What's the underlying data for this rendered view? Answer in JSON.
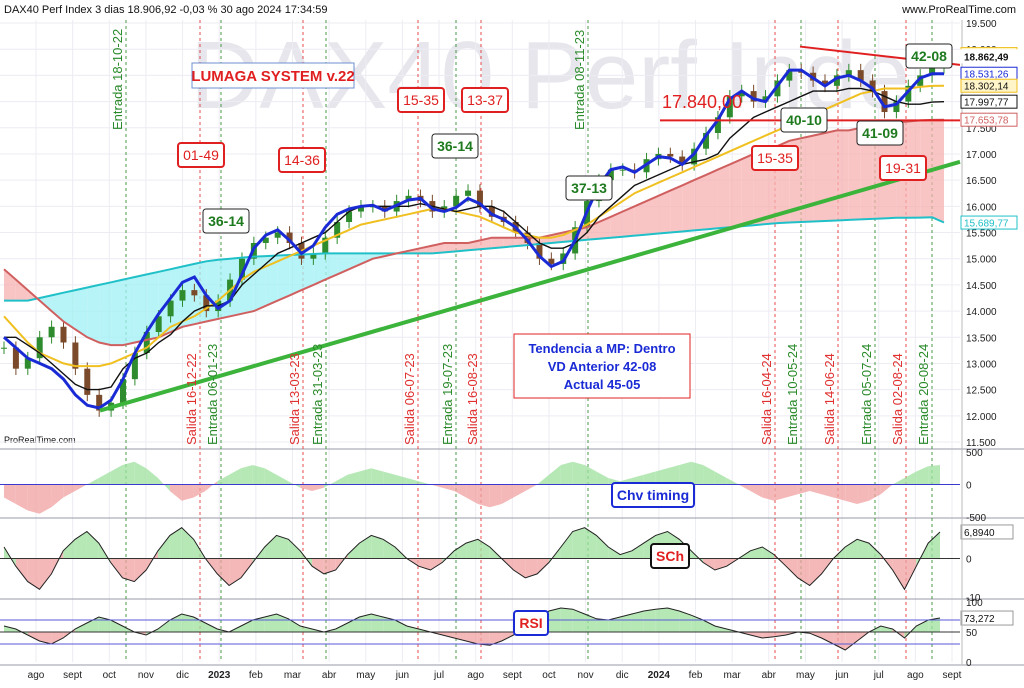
{
  "header": {
    "title": "DAX40 Perf Index 3 dias 18.906,92 -0,03 % 30 ago 2024 17:34:59",
    "brand": "www.ProRealTime.com",
    "watermark": "DAX40 Perf Inde",
    "footer_brand": "ProRealTime.com"
  },
  "colors": {
    "price": "#2e8b2e",
    "ma_blue": "#1a2bd6",
    "ma_black": "#111111",
    "ma_yellow": "#f0c020",
    "ma_brown": "#d06060",
    "ma_cyan": "#20c0c8",
    "trend_green": "#3cb43c",
    "trend_red": "#e02020",
    "signal_red": "#e03030",
    "signal_green": "#2a8a2a"
  },
  "chart_data": [
    {
      "type": "line",
      "name": "price-panel",
      "x": [
        "ago",
        "sept",
        "oct",
        "nov",
        "dic",
        "2023",
        "feb",
        "mar",
        "abr",
        "may",
        "jun",
        "jul",
        "ago",
        "sept",
        "oct",
        "nov",
        "dic",
        "2024",
        "feb",
        "mar",
        "abr",
        "may",
        "jun",
        "jul",
        "ago",
        "sept"
      ],
      "ylim": [
        11500,
        19500
      ],
      "y_ticks": [
        "19.500",
        "19.000",
        "18.500",
        "18.000",
        "17.500",
        "17.000",
        "16.500",
        "16.000",
        "15.500",
        "15.000",
        "14.500",
        "14.000",
        "13.500",
        "13.000",
        "12.500",
        "12.000",
        "11.500"
      ],
      "price_labels": [
        {
          "text": "18.906,92",
          "value": 18906.92,
          "bg": "#f0c020"
        },
        {
          "text": "18.862,49",
          "value": 18862.49,
          "bg": "#ffffff"
        },
        {
          "text": "18.531,26",
          "value": 18531.26,
          "bg": "#1a2bd6"
        },
        {
          "text": "18.302,14",
          "value": 18302.14,
          "bg": "#f0c020"
        },
        {
          "text": "17.997,77",
          "value": 17997.77,
          "bg": "#111111"
        },
        {
          "text": "17.653,78",
          "value": 17653.78,
          "bg": "#d06060"
        },
        {
          "text": "15.689,77",
          "value": 15689.77,
          "bg": "#20c0c8"
        }
      ],
      "price_series": [
        13300,
        12900,
        13100,
        13500,
        13700,
        13400,
        12900,
        12400,
        12100,
        12250,
        12700,
        13200,
        13600,
        13900,
        14200,
        14400,
        14300,
        14000,
        14200,
        14600,
        15000,
        15300,
        15400,
        15500,
        15300,
        15000,
        15100,
        15400,
        15700,
        15900,
        16000,
        16000,
        15900,
        16100,
        16200,
        16100,
        15900,
        16000,
        16200,
        16300,
        16000,
        15800,
        15700,
        15500,
        15300,
        15000,
        14900,
        15100,
        15600,
        16100,
        16500,
        16700,
        16700,
        16650,
        16900,
        17000,
        16950,
        16800,
        17100,
        17400,
        17700,
        18100,
        18200,
        18000,
        18100,
        18400,
        18600,
        18550,
        18400,
        18300,
        18500,
        18600,
        18400,
        18200,
        17800,
        18000,
        18300,
        18500,
        18650,
        18860
      ],
      "ma_blue_series": [
        13500,
        13300,
        13100,
        13000,
        12900,
        12700,
        12400,
        12200,
        12150,
        12300,
        12700,
        13200,
        13600,
        13950,
        14250,
        14550,
        14650,
        14300,
        14050,
        14200,
        14700,
        15200,
        15450,
        15550,
        15350,
        15100,
        15250,
        15600,
        15850,
        15950,
        16000,
        16020,
        15920,
        16020,
        16120,
        16150,
        15950,
        15900,
        15980,
        16150,
        16050,
        15850,
        15750,
        15600,
        15350,
        15050,
        14850,
        14950,
        15350,
        15900,
        16400,
        16700,
        16750,
        16650,
        16800,
        16950,
        16920,
        16800,
        17000,
        17350,
        17650,
        18050,
        18200,
        18050,
        18000,
        18300,
        18600,
        18600,
        18450,
        18300,
        18450,
        18500,
        18400,
        18250,
        17900,
        17950,
        18200,
        18450,
        18530,
        18531
      ],
      "ma_black_series": [
        13500,
        13500,
        13350,
        13200,
        13000,
        12800,
        12600,
        12500,
        12500,
        12550,
        12900,
        13100,
        13200,
        13400,
        13550,
        13800,
        14000,
        14100,
        14100,
        14200,
        14500,
        14700,
        14900,
        15100,
        15200,
        15300,
        15400,
        15500,
        15700,
        15900,
        16000,
        16000,
        16000,
        16000,
        16000,
        16050,
        16000,
        15950,
        15900,
        15950,
        16000,
        16000,
        15900,
        15700,
        15500,
        15300,
        15200,
        15200,
        15300,
        15500,
        15800,
        16000,
        16200,
        16400,
        16500,
        16600,
        16700,
        16800,
        16850,
        16900,
        17000,
        17300,
        17500,
        17700,
        17800,
        17900,
        18000,
        18100,
        18200,
        18200,
        18200,
        18250,
        18250,
        18200,
        18100,
        18000,
        17950,
        17950,
        17990,
        17998
      ],
      "ma_yellow_series": [
        13900,
        13650,
        13400,
        13200,
        13100,
        13000,
        12950,
        12950,
        12950,
        13000,
        13100,
        13200,
        13300,
        13500,
        13700,
        13800,
        13900,
        14050,
        14200,
        14400,
        14600,
        14750,
        14850,
        14950,
        15050,
        15150,
        15250,
        15350,
        15450,
        15550,
        15650,
        15700,
        15750,
        15800,
        15850,
        15900,
        15950,
        15950,
        15900,
        15850,
        15800,
        15700,
        15600,
        15500,
        15450,
        15400,
        15400,
        15450,
        15550,
        15650,
        15800,
        15950,
        16100,
        16250,
        16350,
        16450,
        16550,
        16650,
        16750,
        16850,
        16950,
        17050,
        17150,
        17250,
        17350,
        17450,
        17550,
        17650,
        17750,
        17850,
        17950,
        18050,
        18150,
        18200,
        18250,
        18250,
        18250,
        18280,
        18300,
        18302
      ],
      "ma_brown_series": [
        14800,
        14600,
        14400,
        14200,
        14000,
        13800,
        13650,
        13500,
        13400,
        13350,
        13350,
        13400,
        13450,
        13500,
        13600,
        13700,
        13750,
        13800,
        13850,
        13900,
        13950,
        14000,
        14100,
        14200,
        14300,
        14400,
        14500,
        14600,
        14700,
        14800,
        14900,
        15000,
        15050,
        15100,
        15150,
        15200,
        15250,
        15300,
        15300,
        15300,
        15350,
        15400,
        15400,
        15400,
        15400,
        15400,
        15450,
        15500,
        15550,
        15600,
        15700,
        15800,
        15900,
        16000,
        16100,
        16200,
        16300,
        16400,
        16500,
        16600,
        16700,
        16800,
        16900,
        17000,
        17100,
        17150,
        17250,
        17300,
        17350,
        17400,
        17450,
        17450,
        17500,
        17550,
        17600,
        17600,
        17620,
        17640,
        17650,
        17654
      ],
      "ma_cyan_series": [
        14200,
        14200,
        14200,
        14250,
        14300,
        14350,
        14400,
        14450,
        14500,
        14550,
        14600,
        14650,
        14700,
        14750,
        14800,
        14850,
        14900,
        14950,
        14980,
        15000,
        15020,
        15040,
        15050,
        15060,
        15070,
        15080,
        15090,
        15100,
        15100,
        15100,
        15100,
        15100,
        15100,
        15100,
        15100,
        15100,
        15100,
        15120,
        15140,
        15160,
        15180,
        15200,
        15220,
        15240,
        15260,
        15280,
        15300,
        15320,
        15340,
        15360,
        15380,
        15400,
        15420,
        15440,
        15460,
        15480,
        15500,
        15520,
        15540,
        15560,
        15580,
        15600,
        15620,
        15640,
        15660,
        15680,
        15690,
        15700,
        15710,
        15720,
        15730,
        15740,
        15750,
        15760,
        15770,
        15780,
        15780,
        15785,
        15790,
        15690
      ]
    },
    {
      "type": "area",
      "name": "Chv timing",
      "ylim": [
        -500,
        500
      ],
      "y_ticks": [
        "500",
        "0",
        "-500"
      ],
      "values": [
        -200,
        -300,
        -400,
        -450,
        -350,
        -200,
        -100,
        0,
        100,
        200,
        300,
        350,
        250,
        100,
        -100,
        -250,
        -200,
        -100,
        50,
        150,
        250,
        300,
        250,
        150,
        50,
        -50,
        -100,
        -50,
        50,
        150,
        200,
        250,
        200,
        150,
        100,
        50,
        0,
        -50,
        -100,
        -200,
        -300,
        -350,
        -300,
        -200,
        -100,
        0,
        150,
        300,
        350,
        300,
        200,
        100,
        50,
        100,
        150,
        200,
        250,
        300,
        350,
        300,
        200,
        100,
        0,
        -100,
        -200,
        -250,
        -200,
        -150,
        -100,
        -150,
        -200,
        -250,
        -300,
        -250,
        -150,
        0,
        100,
        200,
        280,
        300
      ]
    },
    {
      "type": "area",
      "name": "SCh",
      "ylim": [
        -10,
        10
      ],
      "y_ticks": [
        "0",
        "-10"
      ],
      "current_label": "6,8940",
      "values": [
        3,
        -2,
        -6,
        -8,
        -4,
        2,
        5,
        7,
        4,
        -1,
        -5,
        -6,
        -3,
        2,
        6,
        8,
        5,
        0,
        -4,
        -7,
        -5,
        -1,
        3,
        6,
        5,
        2,
        -2,
        -4,
        -3,
        1,
        4,
        6,
        5,
        3,
        0,
        -2,
        -3,
        -1,
        2,
        4,
        5,
        3,
        0,
        -3,
        -5,
        -4,
        -1,
        3,
        7,
        8,
        6,
        3,
        1,
        2,
        4,
        6,
        7,
        5,
        2,
        -1,
        -3,
        -2,
        0,
        2,
        3,
        1,
        -2,
        -5,
        -7,
        -4,
        0,
        3,
        5,
        4,
        1,
        -3,
        -8,
        -2,
        4,
        6.894
      ]
    },
    {
      "type": "area",
      "name": "RSI",
      "ylim": [
        0,
        100
      ],
      "y_ticks": [
        "100",
        "50",
        "0"
      ],
      "current_label": "73,272",
      "values": [
        60,
        55,
        45,
        35,
        30,
        40,
        55,
        65,
        75,
        70,
        60,
        50,
        45,
        55,
        70,
        80,
        75,
        65,
        55,
        50,
        60,
        70,
        75,
        80,
        72,
        60,
        55,
        50,
        55,
        65,
        75,
        80,
        75,
        70,
        60,
        55,
        50,
        45,
        40,
        35,
        30,
        28,
        35,
        45,
        55,
        70,
        85,
        90,
        88,
        80,
        72,
        70,
        75,
        80,
        85,
        88,
        90,
        85,
        78,
        70,
        60,
        55,
        50,
        45,
        40,
        42,
        45,
        50,
        48,
        40,
        30,
        20,
        35,
        50,
        60,
        55,
        40,
        60,
        70,
        73.272
      ]
    }
  ],
  "panels": {
    "chv_label": "Chv timing",
    "sch_label": "SCh",
    "rsi_label": "RSI"
  },
  "annotations": {
    "system": "LUMAGA SYSTEM v.22",
    "level": "17.840,00",
    "trend_box": [
      "Tendencia a MP: Dentro",
      "VD Anterior 42-08",
      "Actual 45-05"
    ],
    "signal_boxes": [
      {
        "text": "01-49",
        "color": "red"
      },
      {
        "text": "14-36",
        "color": "red"
      },
      {
        "text": "15-35",
        "color": "red"
      },
      {
        "text": "13-37",
        "color": "red"
      },
      {
        "text": "15-35",
        "color": "red"
      },
      {
        "text": "19-31",
        "color": "red"
      },
      {
        "text": "36-14",
        "color": "green"
      },
      {
        "text": "36-14",
        "color": "green"
      },
      {
        "text": "37-13",
        "color": "green"
      },
      {
        "text": "40-10",
        "color": "green"
      },
      {
        "text": "41-09",
        "color": "green"
      },
      {
        "text": "42-08",
        "color": "green"
      }
    ],
    "vlabels": [
      {
        "text": "Entrada 18-10-22",
        "color": "green"
      },
      {
        "text": "Salida 16-12-22",
        "color": "red"
      },
      {
        "text": "Entrada 06-01-23",
        "color": "green"
      },
      {
        "text": "Salida 13-03-23",
        "color": "red"
      },
      {
        "text": "Entrada 31-03-23",
        "color": "green"
      },
      {
        "text": "Salida 06-07-23",
        "color": "red"
      },
      {
        "text": "Entrada 19-07-23",
        "color": "green"
      },
      {
        "text": "Salida 16-08-23",
        "color": "red"
      },
      {
        "text": "Entrada 08-11-23",
        "color": "green"
      },
      {
        "text": "Salida 16-04-24",
        "color": "red"
      },
      {
        "text": "Entrada 10-05-24",
        "color": "green"
      },
      {
        "text": "Salida 14-06-24",
        "color": "red"
      },
      {
        "text": "Entrada 05-07-24",
        "color": "green"
      },
      {
        "text": "Salida 02-08-24",
        "color": "red"
      },
      {
        "text": "Entrada 20-08-24",
        "color": "green"
      }
    ]
  }
}
